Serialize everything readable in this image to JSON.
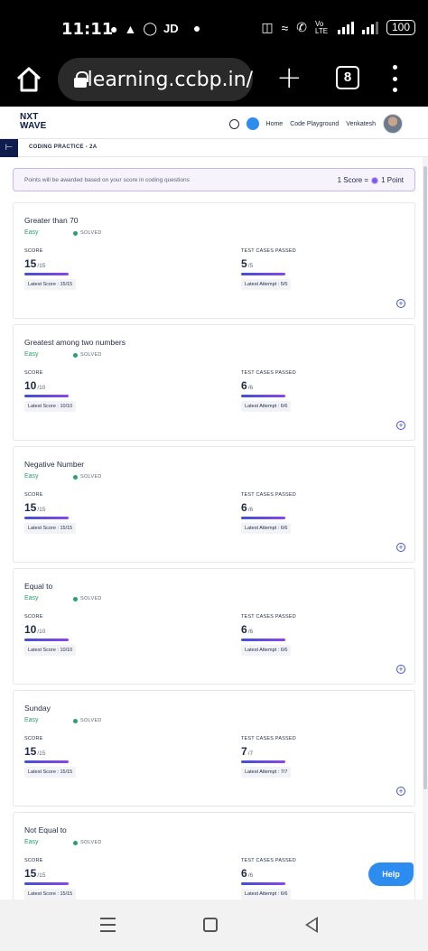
{
  "status_bar": {
    "time": "11:11",
    "carrier_label": "JD",
    "battery": "100",
    "volte": "Vo LTE"
  },
  "browser": {
    "url": "learning.ccbp.in/",
    "tab_count": "8"
  },
  "site_nav": {
    "logo_line1": "NXT",
    "logo_line2": "WAVE",
    "links": [
      "Home",
      "Code Playground"
    ],
    "user_name": "Venkatesh"
  },
  "breadcrumb": "CODING PRACTICE - 2A",
  "banner": {
    "text": "Points will be awarded based on your score in coding questions",
    "score_text": "1 Score =",
    "point_text": "1 Point"
  },
  "labels": {
    "score": "SCORE",
    "test_cases": "TEST CASES PASSED",
    "latest_score_prefix": "Latest Score : ",
    "latest_attempt_prefix": "Latest Attempt : "
  },
  "questions": [
    {
      "title": "Greater than 70",
      "difficulty": "Easy",
      "status": "SOLVED",
      "score": "15",
      "score_max": "/15",
      "latest_score": "Latest Score : 15/15",
      "tests": "5",
      "tests_max": "/5",
      "latest_attempt": "Latest Attempt : 5/5"
    },
    {
      "title": "Greatest among two numbers",
      "difficulty": "Easy",
      "status": "SOLVED",
      "score": "10",
      "score_max": "/10",
      "latest_score": "Latest Score : 10/10",
      "tests": "6",
      "tests_max": "/6",
      "latest_attempt": "Latest Attempt : 6/6"
    },
    {
      "title": "Negative Number",
      "difficulty": "Easy",
      "status": "SOLVED",
      "score": "15",
      "score_max": "/15",
      "latest_score": "Latest Score : 15/15",
      "tests": "6",
      "tests_max": "/6",
      "latest_attempt": "Latest Attempt : 6/6"
    },
    {
      "title": "Equal to",
      "difficulty": "Easy",
      "status": "SOLVED",
      "score": "10",
      "score_max": "/10",
      "latest_score": "Latest Score : 10/10",
      "tests": "6",
      "tests_max": "/6",
      "latest_attempt": "Latest Attempt : 6/6"
    },
    {
      "title": "Sunday",
      "difficulty": "Easy",
      "status": "SOLVED",
      "score": "15",
      "score_max": "/15",
      "latest_score": "Latest Score : 15/15",
      "tests": "7",
      "tests_max": "/7",
      "latest_attempt": "Latest Attempt : 7/7"
    },
    {
      "title": "Not Equal to",
      "difficulty": "Easy",
      "status": "SOLVED",
      "score": "15",
      "score_max": "/15",
      "latest_score": "Latest Score : 15/15",
      "tests": "6",
      "tests_max": "/6",
      "latest_attempt": "Latest Attempt : 6/6"
    }
  ],
  "help_label": "Help",
  "colors": {
    "accent": "#3f51d6",
    "solved": "#27a36a",
    "help": "#2d8cf0",
    "brand": "#0e1b4d"
  }
}
